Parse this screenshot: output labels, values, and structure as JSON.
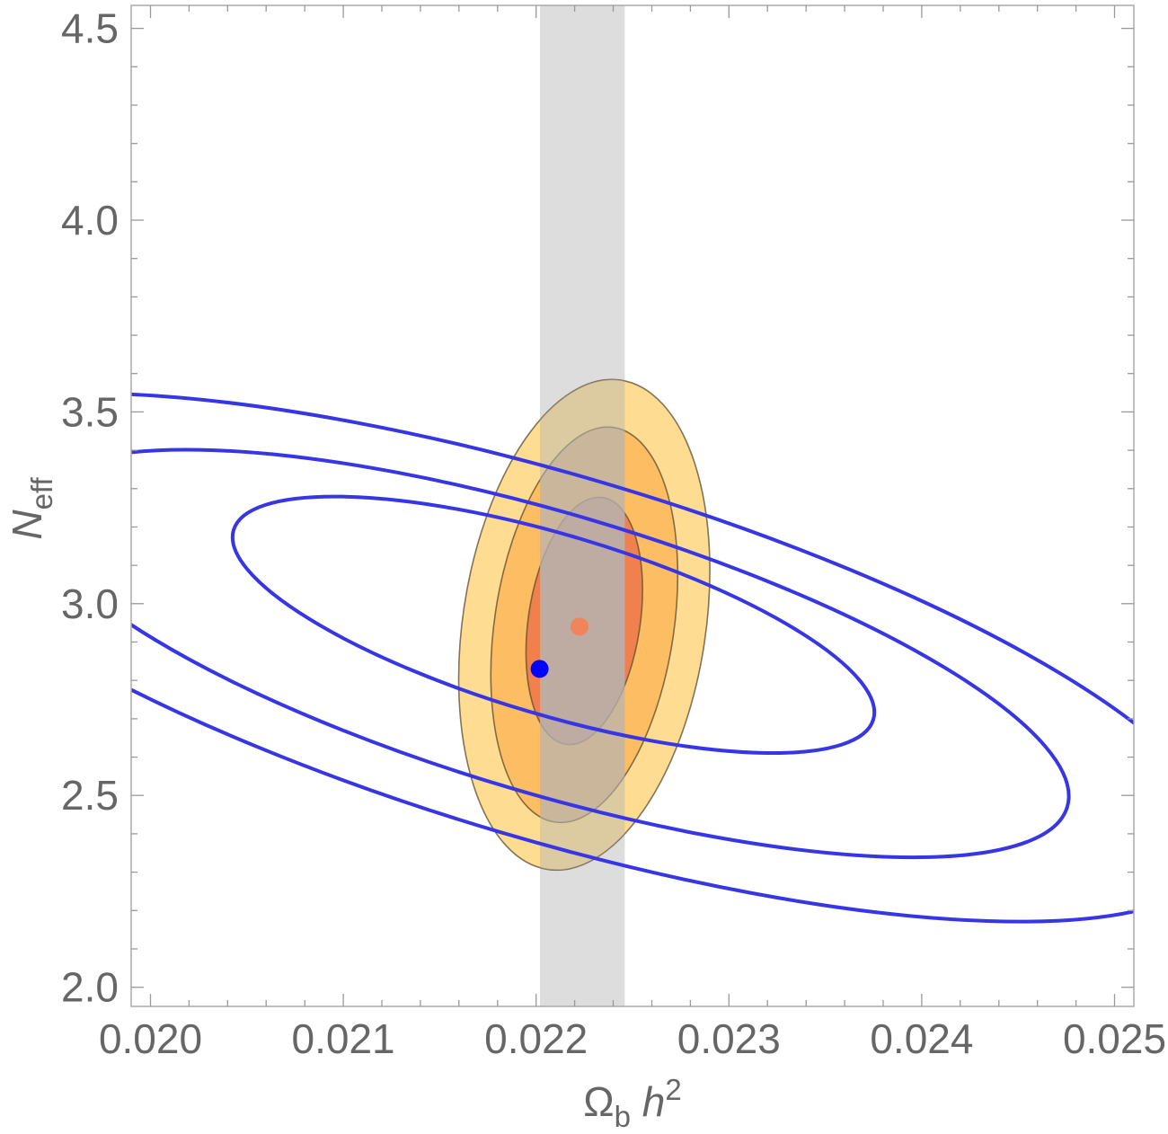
{
  "chart_data": {
    "type": "contour",
    "xlabel": {
      "base": "Ω",
      "sub": "b",
      "mid": " h",
      "sup": "2"
    },
    "ylabel": {
      "base": "N",
      "sub": "eff"
    },
    "xlim": [
      0.0199,
      0.0251
    ],
    "ylim": [
      1.95,
      4.56
    ],
    "x_ticks": [
      {
        "value": 0.02,
        "label": "0.020"
      },
      {
        "value": 0.021,
        "label": "0.021"
      },
      {
        "value": 0.022,
        "label": "0.022"
      },
      {
        "value": 0.023,
        "label": "0.023"
      },
      {
        "value": 0.024,
        "label": "0.024"
      },
      {
        "value": 0.025,
        "label": "0.025"
      }
    ],
    "y_ticks": [
      {
        "value": 2.0,
        "label": "2.0"
      },
      {
        "value": 2.5,
        "label": "2.5"
      },
      {
        "value": 3.0,
        "label": "3.0"
      },
      {
        "value": 3.5,
        "label": "3.5"
      },
      {
        "value": 4.0,
        "label": "4.0"
      },
      {
        "value": 4.5,
        "label": "4.5"
      }
    ],
    "band": {
      "x_range": [
        0.02202,
        0.02246
      ],
      "color": "#dddddd"
    },
    "filled_ellipses": [
      {
        "level": "3-sigma",
        "center": [
          0.02225,
          2.945
        ],
        "rx": 0.00063,
        "ry": 0.645,
        "tilt_deg": 8.5,
        "color": "#fedc91"
      },
      {
        "level": "2-sigma",
        "center": [
          0.02225,
          2.945
        ],
        "rx": 0.000465,
        "ry": 0.52,
        "tilt_deg": 8.5,
        "color": "#fdbd62"
      },
      {
        "level": "1-sigma",
        "center": [
          0.02225,
          2.955
        ],
        "rx": 0.00029,
        "ry": 0.325,
        "tilt_deg": 8.5,
        "color": "#f0804e"
      }
    ],
    "outline_ellipses": [
      {
        "level": "1-sigma",
        "center": [
          0.02209,
          2.945
        ],
        "rx": 0.00173,
        "ry": 0.235,
        "tilt_deg": 16.5,
        "color": "#3636e6"
      },
      {
        "level": "2-sigma",
        "center": [
          0.02207,
          2.87
        ],
        "rx": 0.0028,
        "ry": 0.365,
        "tilt_deg": 16.5,
        "color": "#3636e6"
      },
      {
        "level": "3-sigma",
        "center": [
          0.02208,
          2.86
        ],
        "rx": 0.00362,
        "ry": 0.475,
        "tilt_deg": 16.5,
        "color": "#3636e6"
      }
    ],
    "points": [
      {
        "name": "best-fit-orange",
        "x": 0.022225,
        "y": 2.94,
        "color": "#f0845a"
      },
      {
        "name": "best-fit-blue",
        "x": 0.022018,
        "y": 2.83,
        "color": "#0000ff"
      }
    ],
    "frame_color": "#aaaaaa",
    "text_color": "#666666"
  }
}
